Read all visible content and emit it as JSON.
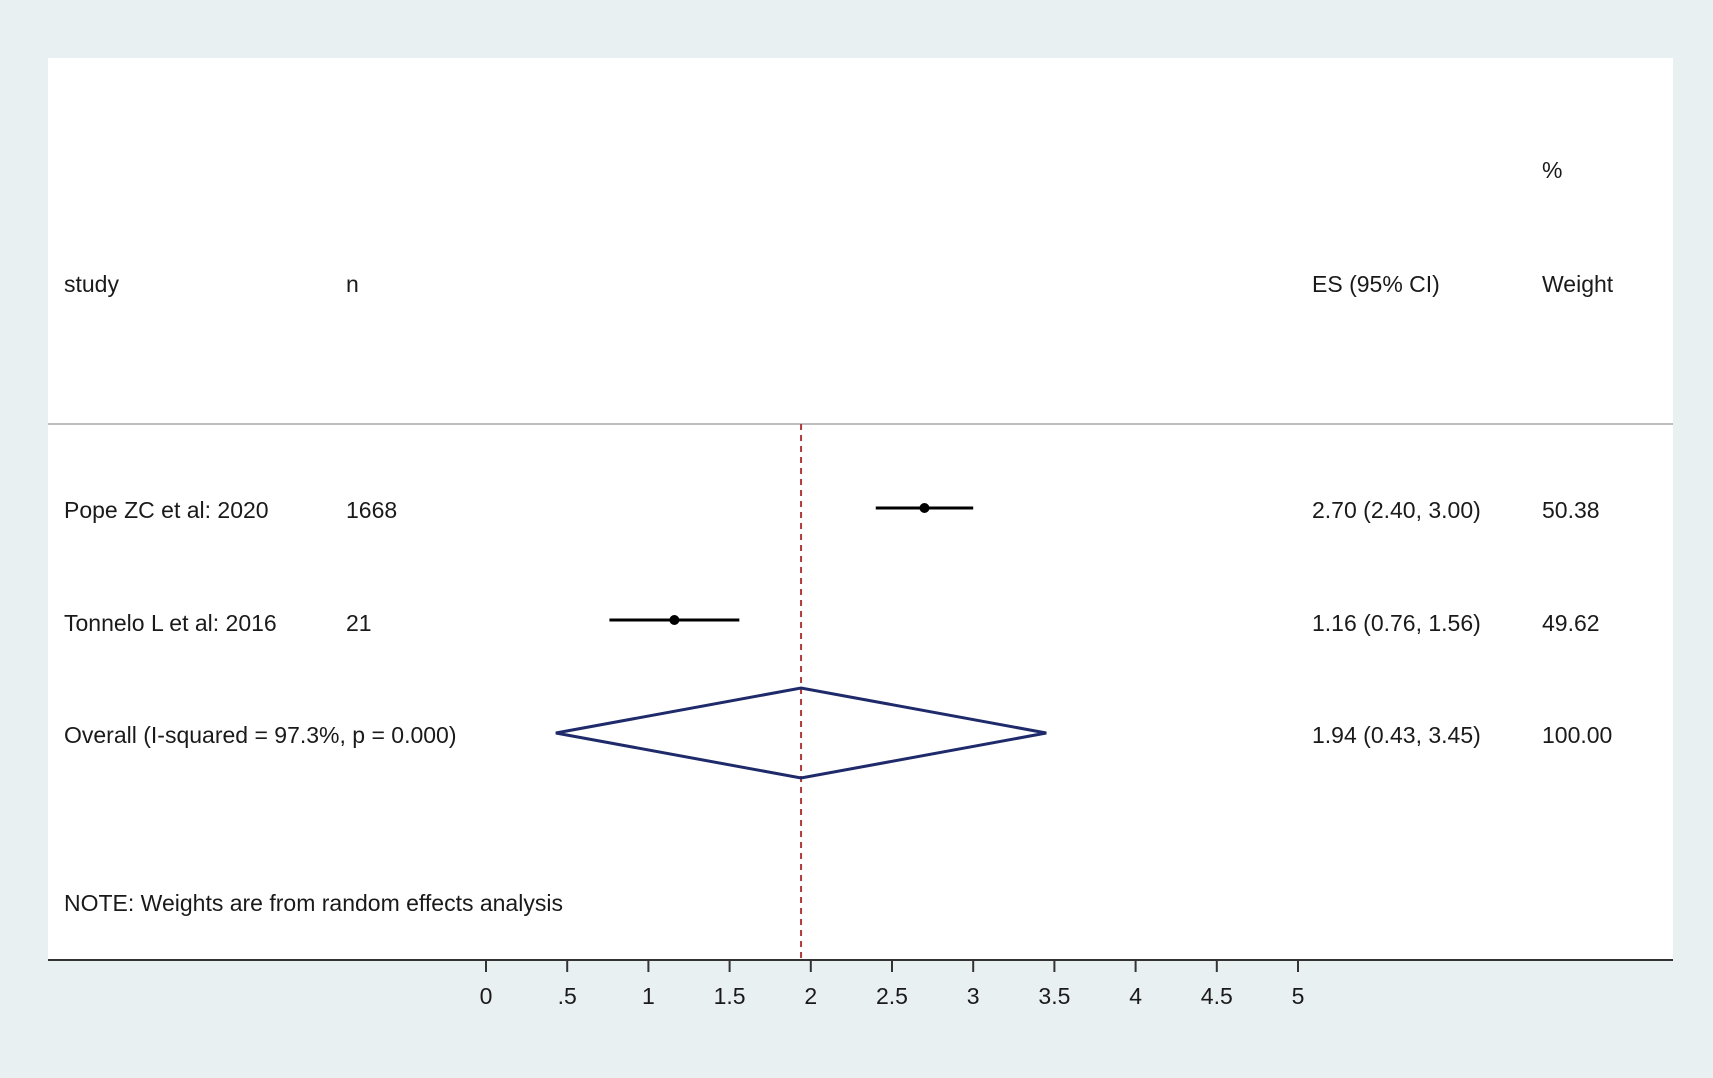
{
  "chart_data": {
    "type": "forest",
    "columns": {
      "study": "study",
      "n": "n",
      "es": "ES (95% CI)",
      "weight_top": "%",
      "weight_bottom": "Weight"
    },
    "studies": [
      {
        "label": "Pope ZC et al: 2020",
        "n": "1668",
        "es": 2.7,
        "lower": 2.4,
        "upper": 3.0,
        "es_text": "2.70 (2.40, 3.00)",
        "weight": "50.38"
      },
      {
        "label": "Tonnelo L et al: 2016",
        "n": "21",
        "es": 1.16,
        "lower": 0.76,
        "upper": 1.56,
        "es_text": "1.16 (0.76, 1.56)",
        "weight": "49.62"
      }
    ],
    "overall": {
      "label": "Overall  (I-squared = 97.3%, p = 0.000)",
      "es": 1.94,
      "lower": 0.43,
      "upper": 3.45,
      "es_text": "1.94 (0.43, 3.45)",
      "weight": "100.00"
    },
    "note": "NOTE: Weights are from random effects analysis",
    "x_ticks": [
      0,
      0.5,
      1,
      1.5,
      2,
      2.5,
      3,
      3.5,
      4,
      4.5,
      5
    ],
    "x_tick_labels": [
      "0",
      ".5",
      "1",
      "1.5",
      "2",
      "2.5",
      "3",
      "3.5",
      "4",
      "4.5",
      "5"
    ],
    "xlim": [
      0,
      5
    ],
    "reference_line": 1.94,
    "colors": {
      "background": "#e9f0f2",
      "panel": "#ffffff",
      "study_marks": "#000000",
      "diamond": "#1f2a6b",
      "reference_line": "#b03a3a",
      "axis": "#333333"
    }
  }
}
